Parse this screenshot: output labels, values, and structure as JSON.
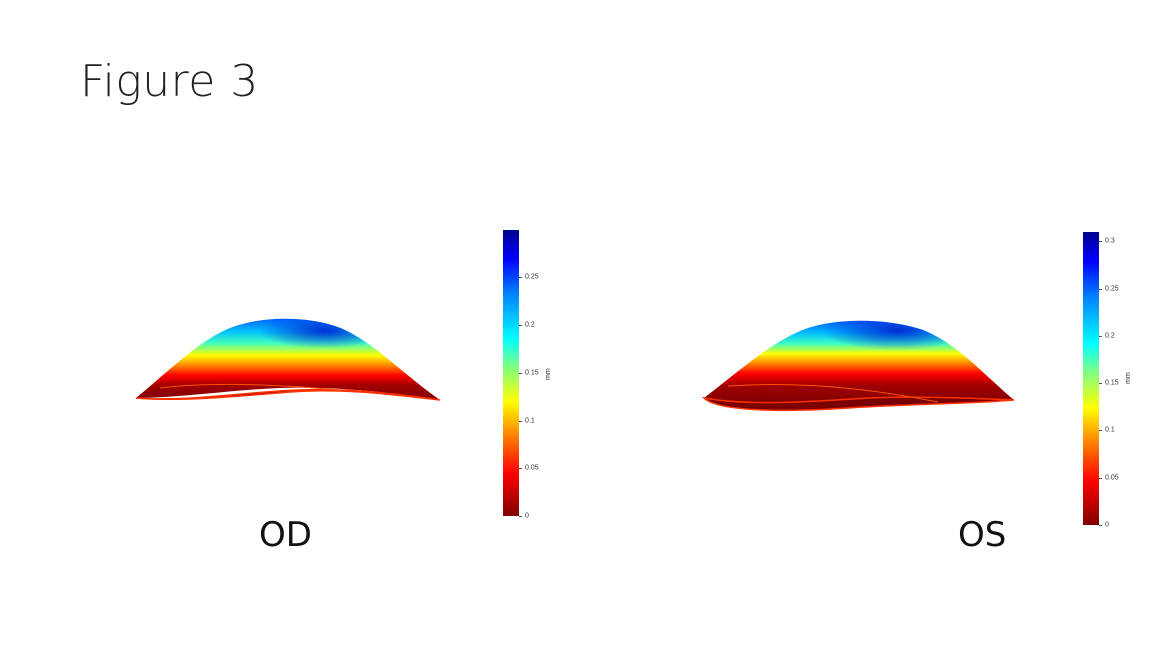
{
  "title": "Figure 3",
  "panels": [
    {
      "label": "OD",
      "colorbar": {
        "unit": "mm",
        "max": 0.295,
        "ticks": [
          "0",
          "0.05",
          "0.1",
          "0.15",
          "0.2",
          "0.25"
        ],
        "tick_values": [
          0,
          0.05,
          0.1,
          0.15,
          0.2,
          0.25
        ]
      }
    },
    {
      "label": "OS",
      "colorbar": {
        "unit": "mm",
        "max": 0.31,
        "ticks": [
          "0",
          "0.05",
          "0.1",
          "0.15",
          "0.2",
          "0.25",
          "0.3"
        ],
        "tick_values": [
          0,
          0.05,
          0.1,
          0.15,
          0.2,
          0.25,
          0.3
        ]
      }
    }
  ],
  "colormap": "jet",
  "colors": {
    "low": "#800000",
    "mid": "#ffff00",
    "high": "#00008f"
  }
}
